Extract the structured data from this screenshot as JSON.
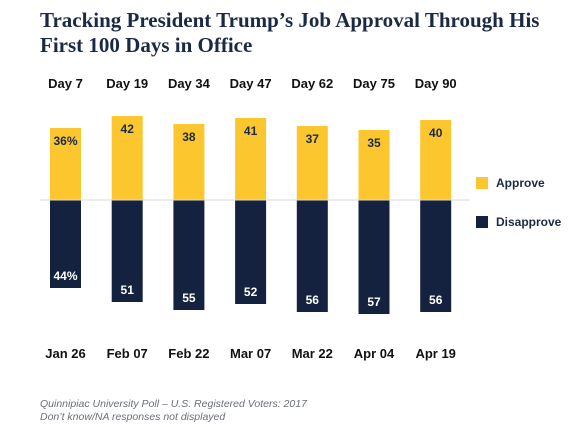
{
  "title": {
    "line1": "Tracking President Trump’s Job Approval Through His",
    "line2": "First 100 Days in Office"
  },
  "colors": {
    "approve": "#fcc72e",
    "disapprove": "#15223f",
    "baseline": "#d9d9d9"
  },
  "legend": {
    "approve": "Approve",
    "disapprove": "Disapprove"
  },
  "footer": {
    "line1": "Quinnipiac University Poll – U.S. Registered Voters: 2017",
    "line2": "Don’t know/NA responses not displayed"
  },
  "chart_data": {
    "type": "bar",
    "title": "Tracking President Trump’s Job Approval Through His First 100 Days in Office",
    "day_labels": [
      "Day 7",
      "Day 19",
      "Day 34",
      "Day 47",
      "Day 62",
      "Day 75",
      "Day 90"
    ],
    "categories": [
      "Jan 26",
      "Feb 07",
      "Feb 22",
      "Mar 07",
      "Mar 22",
      "Apr 04",
      "Apr 19"
    ],
    "series": [
      {
        "name": "Approve",
        "values": [
          36,
          42,
          38,
          41,
          37,
          35,
          40
        ],
        "labels": [
          "36%",
          "42",
          "38",
          "41",
          "37",
          "35",
          "40"
        ]
      },
      {
        "name": "Disapprove",
        "values": [
          44,
          51,
          55,
          52,
          56,
          57,
          56
        ],
        "labels": [
          "44%",
          "51",
          "55",
          "52",
          "56",
          "57",
          "56"
        ]
      }
    ],
    "layout": "diverging",
    "legend_position": "right",
    "grid": false
  }
}
